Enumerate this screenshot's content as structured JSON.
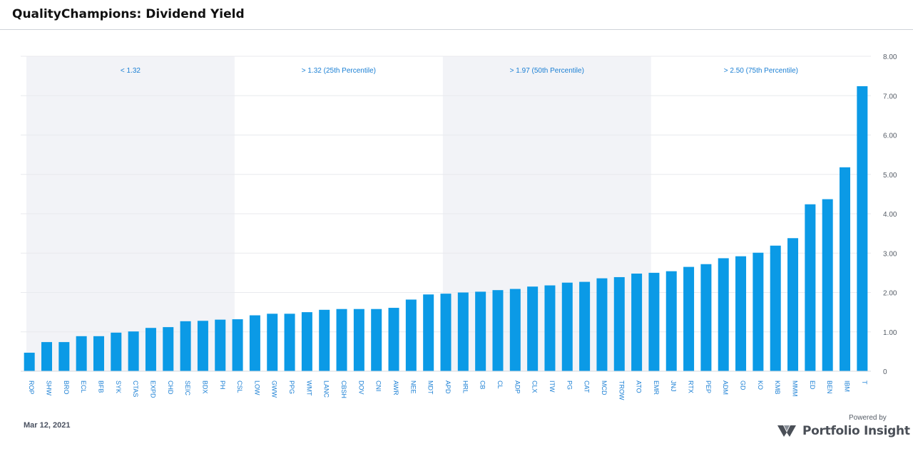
{
  "header": {
    "title": "QualityChampions: Dividend Yield"
  },
  "footer": {
    "date": "Mar 12, 2021",
    "powered_by": "Powered by",
    "brand_name": "Portfolio Insight",
    "brand_logo_icon": "portfolio-insight-logo-icon"
  },
  "chart_data": {
    "type": "bar",
    "categories": [
      "ROP",
      "SHW",
      "BRO",
      "ECL",
      "BFB",
      "SYK",
      "CTAS",
      "EXPD",
      "CHD",
      "SEIC",
      "BDX",
      "PH",
      "CSL",
      "LOW",
      "GWW",
      "PPG",
      "WMT",
      "LANC",
      "CBSH",
      "DOV",
      "CNI",
      "AWR",
      "NEE",
      "MDT",
      "APD",
      "HRL",
      "CB",
      "CL",
      "ADP",
      "CLX",
      "ITW",
      "PG",
      "CAT",
      "MCD",
      "TROW",
      "ATO",
      "EMR",
      "JNJ",
      "RTX",
      "PEP",
      "ADM",
      "GD",
      "KO",
      "KMB",
      "MMM",
      "ED",
      "BEN",
      "IBM",
      "T"
    ],
    "values": [
      0.47,
      0.74,
      0.74,
      0.89,
      0.89,
      0.98,
      1.01,
      1.1,
      1.12,
      1.27,
      1.28,
      1.31,
      1.32,
      1.42,
      1.46,
      1.46,
      1.5,
      1.56,
      1.58,
      1.58,
      1.58,
      1.61,
      1.82,
      1.95,
      1.97,
      2.0,
      2.02,
      2.06,
      2.09,
      2.15,
      2.18,
      2.25,
      2.27,
      2.36,
      2.39,
      2.48,
      2.5,
      2.54,
      2.65,
      2.72,
      2.87,
      2.92,
      3.01,
      3.19,
      3.38,
      4.24,
      4.37,
      5.18,
      7.24
    ],
    "ylim": [
      0,
      8
    ],
    "yticks": [
      "0",
      "1.00",
      "2.00",
      "3.00",
      "4.00",
      "5.00",
      "6.00",
      "7.00",
      "8.00"
    ],
    "y_axis_position": "right",
    "grid": true,
    "bar_color": "#0b9ae6",
    "band_color": "#f2f3f7",
    "label_color": "#1a7fd4",
    "bands": [
      {
        "label": "< 1.32",
        "from": 0,
        "to": 12,
        "shaded": true
      },
      {
        "label": "> 1.32 (25th Percentile)",
        "from": 12,
        "to": 24,
        "shaded": false
      },
      {
        "label": "> 1.97 (50th Percentile)",
        "from": 24,
        "to": 36,
        "shaded": true
      },
      {
        "label": "> 2.50 (75th Percentile)",
        "from": 36,
        "to": 49,
        "shaded": false
      }
    ]
  }
}
